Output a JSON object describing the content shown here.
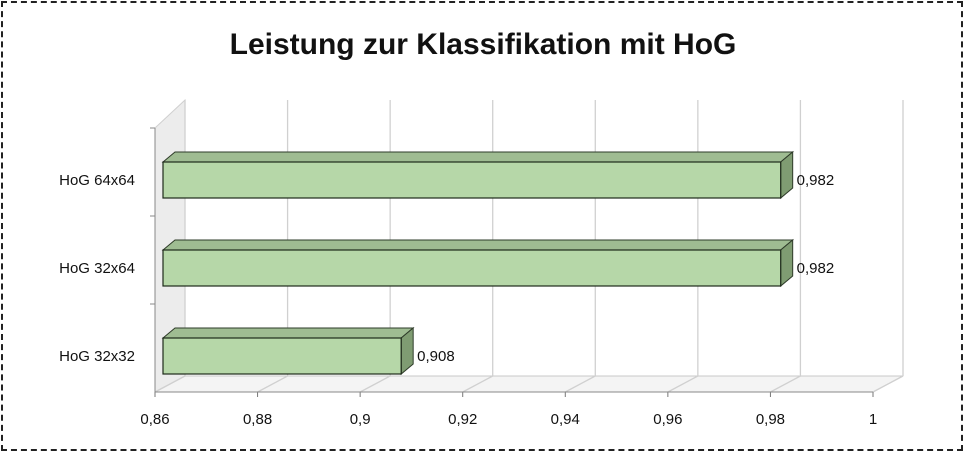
{
  "chart_data": {
    "type": "bar",
    "orientation": "horizontal",
    "style": "3d",
    "title": "Leistung zur Klassifikation mit HoG",
    "categories": [
      "HoG 64x64",
      "HoG 32x64",
      "HoG 32x32"
    ],
    "values": [
      0.982,
      0.982,
      0.908
    ],
    "data_labels": [
      "0,982",
      "0,982",
      "0,908"
    ],
    "xlim": [
      0.86,
      1.0
    ],
    "x_ticks": [
      0.86,
      0.88,
      0.9,
      0.92,
      0.94,
      0.96,
      0.98,
      1.0
    ],
    "x_tick_labels": [
      "0,86",
      "0,88",
      "0,9",
      "0,92",
      "0,94",
      "0,96",
      "0,98",
      "1"
    ],
    "xlabel": "",
    "ylabel": "",
    "grid": true,
    "legend": "none",
    "bar_color": "#b6d7a8",
    "bar_side_color": "#7f9c72",
    "bar_top_color": "#9fbc92"
  }
}
